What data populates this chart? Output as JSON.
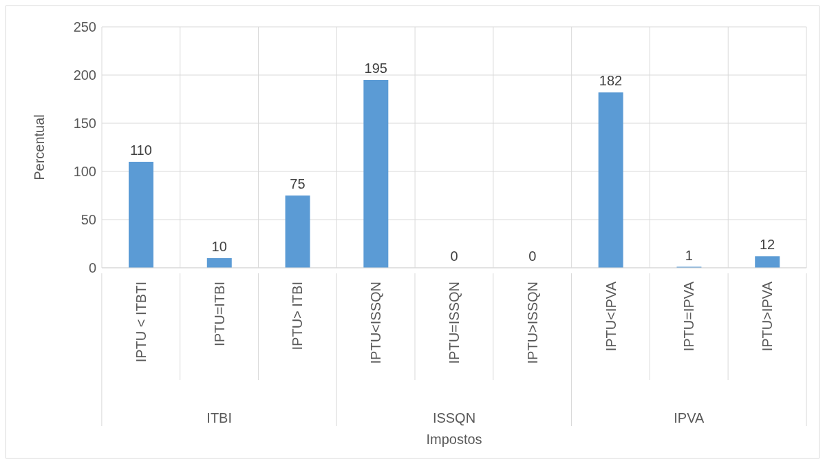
{
  "chart_data": {
    "type": "bar",
    "xlabel": "Impostos",
    "ylabel": "Percentual",
    "categories": [
      "IPTU < ITBTI",
      "IPTU=ITBI",
      "IPTU> ITBI",
      "IPTU<ISSQN",
      "IPTU=ISSQN",
      "IPTU>ISSQN",
      "IPTU<IPVA",
      "IPTU=IPVA",
      "IPTU>IPVA"
    ],
    "values": [
      110,
      10,
      75,
      195,
      0,
      0,
      182,
      1,
      12
    ],
    "color": "#5b9bd5",
    "ylim": [
      0,
      250
    ],
    "yticks": [
      0,
      50,
      100,
      150,
      200,
      250
    ],
    "grid": true,
    "data_labels": true,
    "annotations": [
      "ITBI",
      "ISSQN",
      "IPVA"
    ]
  }
}
